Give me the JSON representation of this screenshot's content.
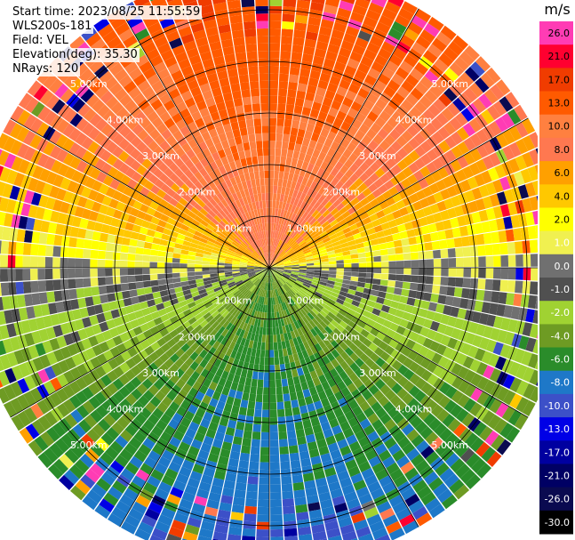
{
  "header": {
    "start_time": "Start time: 2023/08/25 11:55:59",
    "instrument": "WLS200s-181",
    "field": "Field: VEL",
    "elevation": "Elevation(deg): 35.30",
    "nrays": "NRays: 120"
  },
  "colorbar": {
    "unit": "m/s",
    "levels": [
      "26.0",
      "21.0",
      "17.0",
      "13.0",
      "10.0",
      "8.0",
      "6.0",
      "4.0",
      "2.0",
      "1.0",
      "0.0",
      "-1.0",
      "-2.0",
      "-4.0",
      "-6.0",
      "-8.0",
      "-10.0",
      "-13.0",
      "-17.0",
      "-21.0",
      "-26.0",
      "-30.0"
    ],
    "colors": [
      "#ff3cb4",
      "#ff0030",
      "#f03c00",
      "#ff5a00",
      "#ff8040",
      "#ff7850",
      "#ffa000",
      "#ffc800",
      "#ffff00",
      "#f0f050",
      "#707070",
      "#505050",
      "#a0d232",
      "#6e9b23",
      "#2a8c2a",
      "#1e78c8",
      "#3c50c8",
      "#0000e6",
      "#0000a0",
      "#000064",
      "#0a0a50",
      "#000000"
    ]
  },
  "chart_data": {
    "type": "ppi",
    "field": "VEL",
    "nrays": 120,
    "range_rings_km": [
      1.0,
      2.0,
      3.0,
      4.0,
      5.0
    ],
    "ring_labels": [
      "1.00km",
      "2.00km",
      "3.00km",
      "4.00km",
      "5.00km"
    ],
    "max_range_km": 5.8,
    "velocity_pattern": {
      "description_values": "dipole: positive velocities toward north, negative toward south",
      "north_max_ms": 13.0,
      "south_min_ms": -10.0,
      "zero_line_azimuth_deg": [
        90,
        270
      ]
    }
  }
}
